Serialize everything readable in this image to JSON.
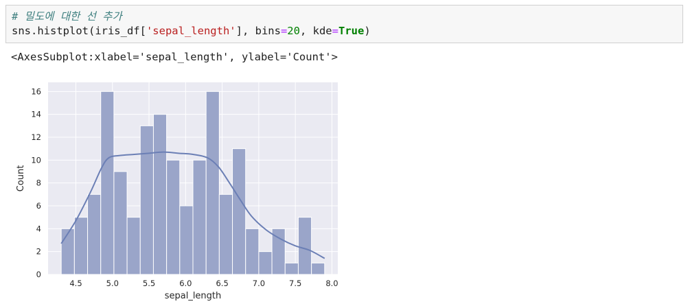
{
  "cell": {
    "comment": "# 밀도에 대한 선 추가",
    "code_parts": {
      "p1": "sns.histplot(iris_df[",
      "p2": "'sepal_length'",
      "p3": "], bins",
      "p4": "=",
      "p5": "20",
      "p6": ", kde",
      "p7": "=",
      "p8": "True",
      "p9": ")"
    }
  },
  "output": {
    "text": "<AxesSubplot:xlabel='sepal_length', ylabel='Count'>"
  },
  "colors": {
    "bar_fill": "#9aa5c9",
    "bar_stroke": "#ffffff",
    "kde_line": "#6b7fb5",
    "axes_bg": "#eaeaf2",
    "grid": "#ffffff"
  },
  "chart_data": {
    "type": "bar",
    "xlabel": "sepal_length",
    "ylabel": "Count",
    "xlim": [
      4.12,
      8.08
    ],
    "ylim": [
      0,
      16.8
    ],
    "xticks": [
      "4.5",
      "5.0",
      "5.5",
      "6.0",
      "6.5",
      "7.0",
      "7.5",
      "8.0"
    ],
    "yticks": [
      "0",
      "2",
      "4",
      "6",
      "8",
      "10",
      "12",
      "14",
      "16"
    ],
    "bin_edges": [
      4.3,
      4.48,
      4.66,
      4.84,
      5.02,
      5.2,
      5.38,
      5.56,
      5.74,
      5.92,
      6.1,
      6.28,
      6.46,
      6.64,
      6.82,
      7.0,
      7.18,
      7.36,
      7.54,
      7.72,
      7.9
    ],
    "counts": [
      4,
      5,
      7,
      16,
      9,
      5,
      13,
      14,
      10,
      6,
      10,
      16,
      7,
      11,
      4,
      2,
      4,
      1,
      5,
      1
    ],
    "kde": {
      "x": [
        4.3,
        4.5,
        4.7,
        4.85,
        4.95,
        5.1,
        5.3,
        5.5,
        5.7,
        5.9,
        6.1,
        6.3,
        6.45,
        6.6,
        6.75,
        6.9,
        7.1,
        7.3,
        7.5,
        7.7,
        7.9
      ],
      "y": [
        2.7,
        4.7,
        7.2,
        9.3,
        10.2,
        10.4,
        10.5,
        10.6,
        10.7,
        10.6,
        10.5,
        10.2,
        9.4,
        8.0,
        6.5,
        5.1,
        3.9,
        3.1,
        2.5,
        2.1,
        1.4
      ]
    },
    "grid": true,
    "legend": "none"
  }
}
